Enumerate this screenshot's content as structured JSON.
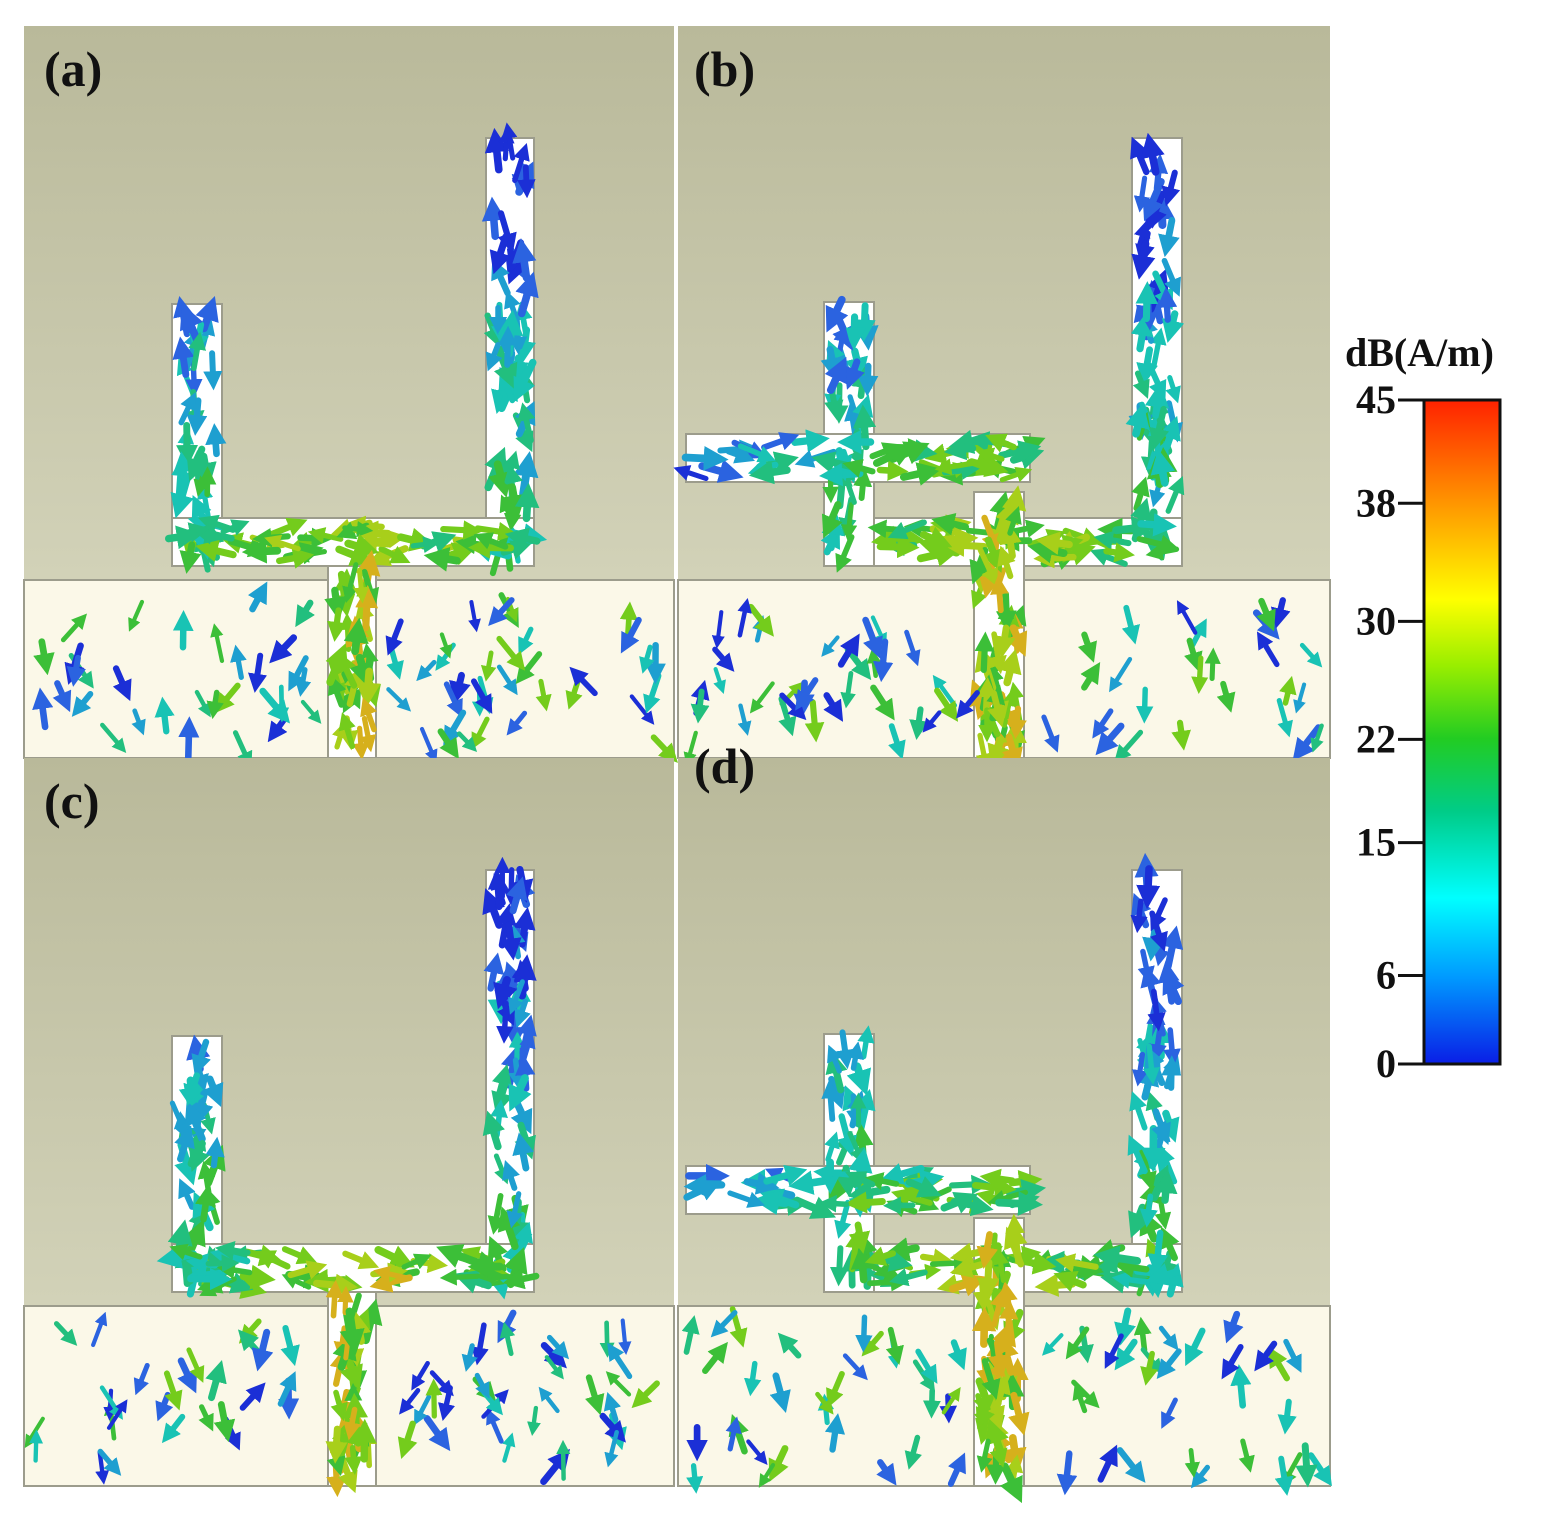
{
  "figure": {
    "panels": [
      {
        "label": "(a)",
        "geometry": "u"
      },
      {
        "label": "(b)",
        "geometry": "plus"
      },
      {
        "label": "(c)",
        "geometry": "u"
      },
      {
        "label": "(d)",
        "geometry": "plus"
      }
    ]
  },
  "colorbar": {
    "title": "dB(A/m)",
    "ticks": [
      "45",
      "38",
      "30",
      "22",
      "15",
      "6",
      "0"
    ],
    "tick_values": [
      45,
      38,
      30,
      22,
      15,
      6,
      0
    ],
    "range": [
      0,
      45
    ],
    "colormap": [
      "#0a1ee6",
      "#0099ff",
      "#00ffff",
      "#00cc88",
      "#22cc22",
      "#99ee00",
      "#ffff00",
      "#ff9900",
      "#ff2200"
    ]
  },
  "colors": {
    "upper_background": "#c1c1a3",
    "ground_plane": "#fbf8e8",
    "metal": "#ffffff",
    "outline": "#9c9c8c"
  }
}
